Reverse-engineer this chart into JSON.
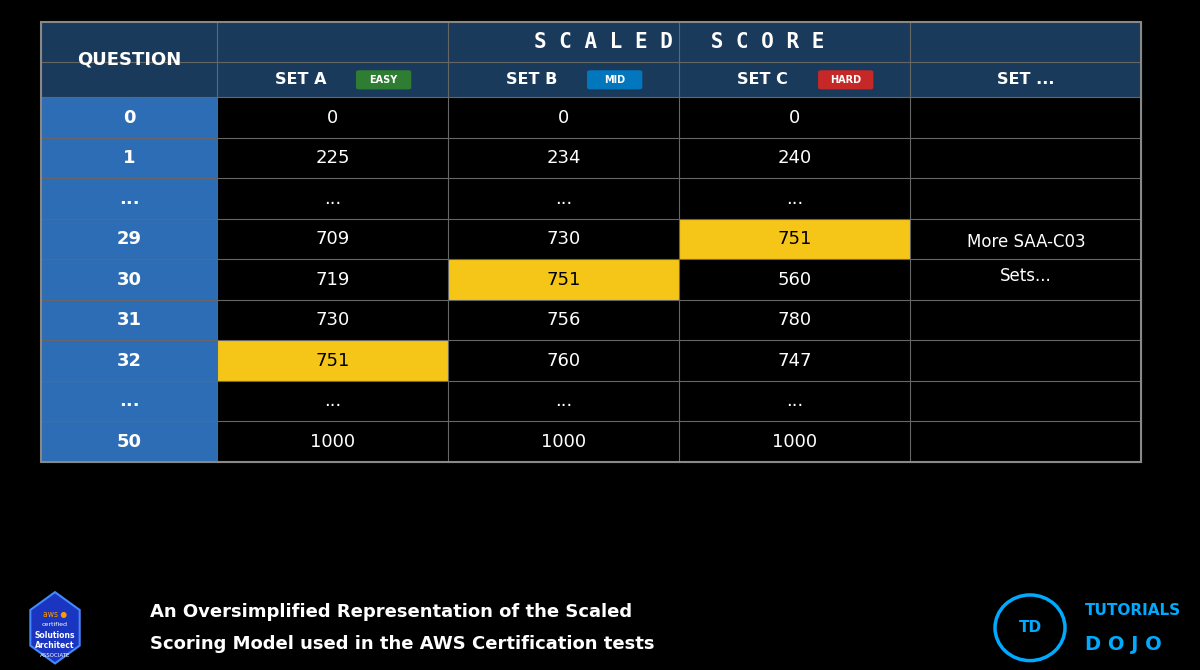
{
  "bg_color": "#000000",
  "table_bg": "#000000",
  "header_top_bg": "#1a3a5c",
  "header_row_bg": "#1a3a5c",
  "question_col_bg": "#2d6db5",
  "highlight_yellow": "#f5c518",
  "text_white": "#ffffff",
  "text_black": "#000000",
  "scaled_score_title": "S C A L E D   S C O R E",
  "set_a_label": "EASY",
  "set_b_label": "MID",
  "set_c_label": "HARD",
  "set_a_badge_color": "#2e7d32",
  "set_b_badge_color": "#0277bd",
  "set_c_badge_color": "#c62828",
  "rows": [
    {
      "q": "0",
      "a": "0",
      "b": "0",
      "c": "0",
      "hy": [
        false,
        false,
        false
      ]
    },
    {
      "q": "1",
      "a": "225",
      "b": "234",
      "c": "240",
      "hy": [
        false,
        false,
        false
      ]
    },
    {
      "q": "...",
      "a": "...",
      "b": "...",
      "c": "...",
      "hy": [
        false,
        false,
        false
      ]
    },
    {
      "q": "29",
      "a": "709",
      "b": "730",
      "c": "751",
      "hy": [
        false,
        false,
        true
      ]
    },
    {
      "q": "30",
      "a": "719",
      "b": "751",
      "c": "560",
      "hy": [
        false,
        true,
        false
      ]
    },
    {
      "q": "31",
      "a": "730",
      "b": "756",
      "c": "780",
      "hy": [
        false,
        false,
        false
      ]
    },
    {
      "q": "32",
      "a": "751",
      "b": "760",
      "c": "747",
      "hy": [
        true,
        false,
        false
      ]
    },
    {
      "q": "...",
      "a": "...",
      "b": "...",
      "c": "...",
      "hy": [
        false,
        false,
        false
      ]
    },
    {
      "q": "50",
      "a": "1000",
      "b": "1000",
      "c": "1000",
      "hy": [
        false,
        false,
        false
      ]
    }
  ],
  "more_sets_text": [
    "More SAA-C03",
    "Sets..."
  ],
  "footer_text_line1": "An Oversimplified Representation of the Scaled",
  "footer_text_line2": "Scoring Model used in the AWS Certification tests",
  "tutorials_dojo_color": "#00aaff"
}
